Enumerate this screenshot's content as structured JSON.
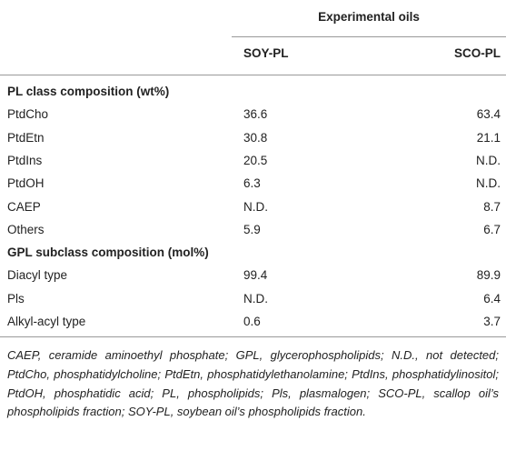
{
  "table": {
    "group_header": "Experimental oils",
    "columns": [
      "SOY-PL",
      "SCO-PL"
    ],
    "sections": [
      {
        "title": "PL class composition (wt%)",
        "rows": [
          [
            "PtdCho",
            36.6,
            63.4
          ],
          [
            "PtdEtn",
            30.8,
            21.1
          ],
          [
            "PtdIns",
            20.5,
            "N.D."
          ],
          [
            "PtdOH",
            6.3,
            "N.D."
          ],
          [
            "CAEP",
            "N.D.",
            8.7
          ],
          [
            "Others",
            5.9,
            6.7
          ]
        ]
      },
      {
        "title": "GPL subclass composition (mol%)",
        "rows": [
          [
            "Diacyl type",
            99.4,
            89.9
          ],
          [
            "Pls",
            "N.D.",
            6.4
          ],
          [
            "Alkyl-acyl type",
            0.6,
            3.7
          ]
        ]
      }
    ]
  },
  "footnote": "CAEP, ceramide aminoethyl phosphate; GPL, glycerophospholipids; N.D., not detected; PtdCho, phosphatidylcholine; PtdEtn, phosphatidylethanolamine; PtdIns, phosphatidylinositol; PtdOH, phosphatidic acid; PL, phospholipids; Pls, plasmalogen; SCO-PL, scallop oil’s phospholipids fraction; SOY-PL, soybean oil’s phospholipids fraction."
}
